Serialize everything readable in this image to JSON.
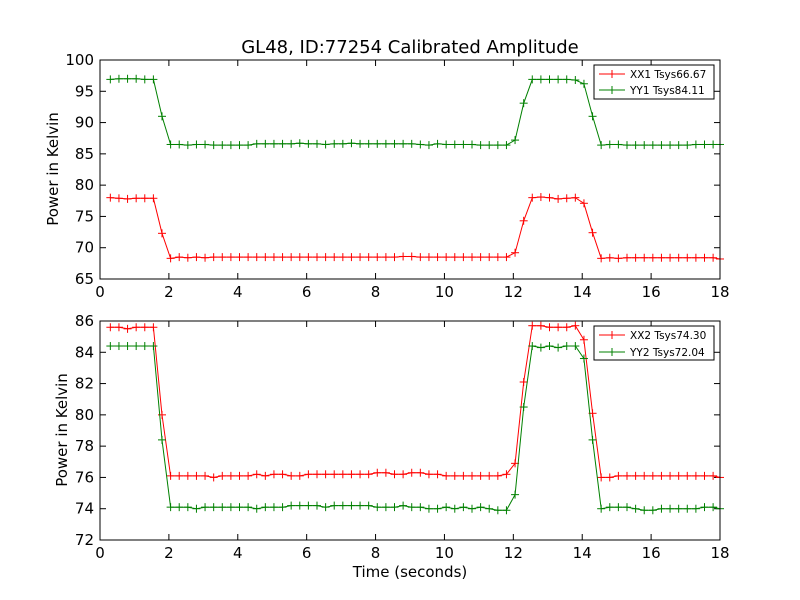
{
  "chart_data": [
    {
      "type": "line",
      "title": "GL48, ID:77254 Calibrated Amplitude",
      "xlabel": "",
      "ylabel": "Power in Kelvin",
      "xlim": [
        0,
        18
      ],
      "ylim": [
        65,
        100
      ],
      "xticks": [
        0,
        2,
        4,
        6,
        8,
        10,
        12,
        14,
        16,
        18
      ],
      "yticks": [
        65,
        70,
        75,
        80,
        85,
        90,
        95,
        100
      ],
      "grid": false,
      "legend_position": "top-right",
      "x": [
        0.3,
        0.55,
        0.8,
        1.05,
        1.3,
        1.55,
        1.8,
        2.05,
        2.3,
        2.55,
        2.8,
        3.05,
        3.3,
        3.55,
        3.8,
        4.05,
        4.3,
        4.55,
        4.8,
        5.05,
        5.3,
        5.55,
        5.8,
        6.05,
        6.3,
        6.55,
        6.8,
        7.05,
        7.3,
        7.55,
        7.8,
        8.05,
        8.3,
        8.55,
        8.8,
        9.05,
        9.3,
        9.55,
        9.8,
        10.05,
        10.3,
        10.55,
        10.8,
        11.05,
        11.3,
        11.55,
        11.8,
        12.05,
        12.3,
        12.55,
        12.8,
        13.05,
        13.3,
        13.55,
        13.8,
        14.05,
        14.3,
        14.55,
        14.8,
        15.05,
        15.3,
        15.55,
        15.8,
        16.05,
        16.3,
        16.55,
        16.8,
        17.05,
        17.3,
        17.55,
        17.8,
        18.0
      ],
      "series": [
        {
          "name": "XX1 Tsys66.67",
          "color": "#ff0000",
          "values": [
            78.0,
            77.9,
            77.8,
            77.9,
            77.9,
            77.9,
            72.3,
            68.3,
            68.5,
            68.4,
            68.5,
            68.4,
            68.5,
            68.5,
            68.5,
            68.5,
            68.5,
            68.5,
            68.5,
            68.5,
            68.5,
            68.5,
            68.5,
            68.5,
            68.5,
            68.5,
            68.5,
            68.5,
            68.5,
            68.5,
            68.5,
            68.5,
            68.5,
            68.5,
            68.6,
            68.6,
            68.5,
            68.5,
            68.5,
            68.5,
            68.5,
            68.5,
            68.5,
            68.5,
            68.5,
            68.5,
            68.5,
            69.2,
            74.3,
            78.0,
            78.1,
            78.0,
            77.8,
            77.9,
            78.0,
            77.1,
            72.4,
            68.3,
            68.4,
            68.3,
            68.4,
            68.4,
            68.4,
            68.4,
            68.4,
            68.4,
            68.4,
            68.4,
            68.4,
            68.4,
            68.4,
            68.2
          ]
        },
        {
          "name": "YY1 Tsys84.11",
          "color": "#008000",
          "values": [
            96.9,
            97.0,
            97.0,
            97.0,
            96.9,
            96.9,
            91.0,
            86.5,
            86.5,
            86.4,
            86.5,
            86.5,
            86.4,
            86.4,
            86.4,
            86.4,
            86.4,
            86.6,
            86.6,
            86.6,
            86.6,
            86.6,
            86.7,
            86.6,
            86.6,
            86.5,
            86.6,
            86.6,
            86.7,
            86.6,
            86.6,
            86.6,
            86.6,
            86.6,
            86.6,
            86.6,
            86.5,
            86.4,
            86.6,
            86.5,
            86.5,
            86.5,
            86.5,
            86.4,
            86.4,
            86.4,
            86.4,
            87.2,
            93.1,
            96.9,
            96.9,
            96.9,
            96.9,
            96.9,
            96.8,
            96.2,
            91.0,
            86.4,
            86.5,
            86.5,
            86.4,
            86.4,
            86.4,
            86.4,
            86.4,
            86.4,
            86.4,
            86.4,
            86.5,
            86.5,
            86.5,
            86.5
          ]
        }
      ]
    },
    {
      "type": "line",
      "title": "",
      "xlabel": "Time (seconds)",
      "ylabel": "Power in Kelvin",
      "xlim": [
        0,
        18
      ],
      "ylim": [
        72,
        86
      ],
      "xticks": [
        0,
        2,
        4,
        6,
        8,
        10,
        12,
        14,
        16,
        18
      ],
      "yticks": [
        72,
        74,
        76,
        78,
        80,
        82,
        84,
        86
      ],
      "grid": false,
      "legend_position": "top-right",
      "x": [
        0.3,
        0.55,
        0.8,
        1.05,
        1.3,
        1.55,
        1.8,
        2.05,
        2.3,
        2.55,
        2.8,
        3.05,
        3.3,
        3.55,
        3.8,
        4.05,
        4.3,
        4.55,
        4.8,
        5.05,
        5.3,
        5.55,
        5.8,
        6.05,
        6.3,
        6.55,
        6.8,
        7.05,
        7.3,
        7.55,
        7.8,
        8.05,
        8.3,
        8.55,
        8.8,
        9.05,
        9.3,
        9.55,
        9.8,
        10.05,
        10.3,
        10.55,
        10.8,
        11.05,
        11.3,
        11.55,
        11.8,
        12.05,
        12.3,
        12.55,
        12.8,
        13.05,
        13.3,
        13.55,
        13.8,
        14.05,
        14.3,
        14.55,
        14.8,
        15.05,
        15.3,
        15.55,
        15.8,
        16.05,
        16.3,
        16.55,
        16.8,
        17.05,
        17.3,
        17.55,
        17.8,
        18.0
      ],
      "series": [
        {
          "name": "XX2 Tsys74.30",
          "color": "#ff0000",
          "values": [
            85.6,
            85.6,
            85.5,
            85.6,
            85.6,
            85.6,
            80.0,
            76.1,
            76.1,
            76.1,
            76.1,
            76.1,
            76.0,
            76.1,
            76.1,
            76.1,
            76.1,
            76.2,
            76.1,
            76.2,
            76.2,
            76.1,
            76.1,
            76.2,
            76.2,
            76.2,
            76.2,
            76.2,
            76.2,
            76.2,
            76.2,
            76.3,
            76.3,
            76.2,
            76.2,
            76.3,
            76.3,
            76.2,
            76.2,
            76.1,
            76.1,
            76.1,
            76.1,
            76.1,
            76.1,
            76.1,
            76.2,
            76.9,
            82.1,
            85.7,
            85.7,
            85.6,
            85.6,
            85.6,
            85.7,
            84.8,
            80.1,
            76.0,
            76.0,
            76.1,
            76.1,
            76.1,
            76.1,
            76.1,
            76.1,
            76.1,
            76.1,
            76.1,
            76.1,
            76.1,
            76.1,
            76.0
          ]
        },
        {
          "name": "YY2 Tsys72.04",
          "color": "#008000",
          "values": [
            84.4,
            84.4,
            84.4,
            84.4,
            84.4,
            84.4,
            78.4,
            74.1,
            74.1,
            74.1,
            74.0,
            74.1,
            74.1,
            74.1,
            74.1,
            74.1,
            74.1,
            74.0,
            74.1,
            74.1,
            74.1,
            74.2,
            74.2,
            74.2,
            74.2,
            74.1,
            74.2,
            74.2,
            74.2,
            74.2,
            74.2,
            74.1,
            74.1,
            74.1,
            74.2,
            74.1,
            74.1,
            74.0,
            74.0,
            74.1,
            74.0,
            74.1,
            74.0,
            74.1,
            74.0,
            73.9,
            73.9,
            74.9,
            80.5,
            84.4,
            84.3,
            84.4,
            84.3,
            84.4,
            84.4,
            83.6,
            78.4,
            74.0,
            74.1,
            74.1,
            74.1,
            74.0,
            73.9,
            73.9,
            74.0,
            74.0,
            74.0,
            74.0,
            74.0,
            74.1,
            74.1,
            74.0
          ]
        }
      ]
    }
  ]
}
